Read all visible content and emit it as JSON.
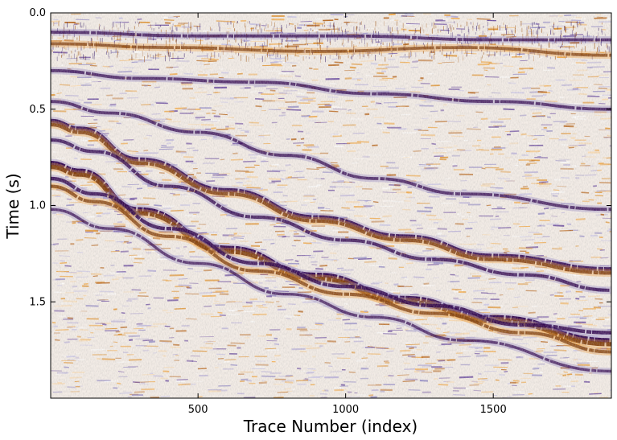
{
  "chart_data": {
    "type": "heatmap",
    "title": "",
    "xlabel": "Trace Number (index)",
    "ylabel": "Time (s)",
    "xlim": [
      1,
      1900
    ],
    "ylim": [
      2.0,
      0.0
    ],
    "x_ticks": [
      {
        "value": 500,
        "label": "500"
      },
      {
        "value": 1000,
        "label": "1000"
      },
      {
        "value": 1500,
        "label": "1500"
      }
    ],
    "y_ticks": [
      {
        "value": 0.0,
        "label": "0.0"
      },
      {
        "value": 0.5,
        "label": "0.5"
      },
      {
        "value": 1.0,
        "label": "1.0"
      },
      {
        "value": 1.5,
        "label": "1.5"
      }
    ],
    "grid": false,
    "colormap": "PuOr",
    "colors": {
      "positive": "#2d004b",
      "negative": "#7f3b08",
      "zero": "#f7f7f7"
    },
    "reflectors": [
      {
        "amplitude": 1.0,
        "points": [
          [
            1,
            0.78
          ],
          [
            100,
            0.82
          ],
          [
            300,
            1.02
          ],
          [
            600,
            1.22
          ],
          [
            900,
            1.36
          ],
          [
            1200,
            1.48
          ],
          [
            1500,
            1.58
          ],
          [
            1900,
            1.7
          ]
        ]
      },
      {
        "amplitude": -0.9,
        "points": [
          [
            1,
            0.8
          ],
          [
            100,
            0.84
          ],
          [
            300,
            1.04
          ],
          [
            600,
            1.24
          ],
          [
            900,
            1.38
          ],
          [
            1200,
            1.5
          ],
          [
            1500,
            1.6
          ],
          [
            1900,
            1.72
          ]
        ]
      },
      {
        "amplitude": 0.8,
        "points": [
          [
            1,
            0.56
          ],
          [
            100,
            0.6
          ],
          [
            300,
            0.76
          ],
          [
            600,
            0.92
          ],
          [
            900,
            1.06
          ],
          [
            1200,
            1.16
          ],
          [
            1500,
            1.26
          ],
          [
            1900,
            1.33
          ]
        ]
      },
      {
        "amplitude": -0.7,
        "points": [
          [
            1,
            0.58
          ],
          [
            100,
            0.62
          ],
          [
            300,
            0.78
          ],
          [
            600,
            0.94
          ],
          [
            900,
            1.08
          ],
          [
            1200,
            1.18
          ],
          [
            1500,
            1.28
          ],
          [
            1900,
            1.35
          ]
        ]
      },
      {
        "amplitude": 0.6,
        "points": [
          [
            1,
            0.66
          ],
          [
            150,
            0.72
          ],
          [
            400,
            0.9
          ],
          [
            700,
            1.06
          ],
          [
            1000,
            1.18
          ],
          [
            1300,
            1.28
          ],
          [
            1600,
            1.36
          ],
          [
            1900,
            1.44
          ]
        ]
      },
      {
        "amplitude": 0.7,
        "points": [
          [
            1,
            0.86
          ],
          [
            150,
            0.94
          ],
          [
            400,
            1.12
          ],
          [
            700,
            1.3
          ],
          [
            1000,
            1.42
          ],
          [
            1300,
            1.52
          ],
          [
            1600,
            1.62
          ],
          [
            1900,
            1.66
          ]
        ]
      },
      {
        "amplitude": -0.6,
        "points": [
          [
            1,
            0.9
          ],
          [
            150,
            0.98
          ],
          [
            400,
            1.16
          ],
          [
            700,
            1.34
          ],
          [
            1000,
            1.46
          ],
          [
            1300,
            1.56
          ],
          [
            1600,
            1.66
          ],
          [
            1900,
            1.76
          ]
        ]
      },
      {
        "amplitude": 0.5,
        "points": [
          [
            1,
            0.46
          ],
          [
            200,
            0.52
          ],
          [
            500,
            0.62
          ],
          [
            800,
            0.74
          ],
          [
            1100,
            0.86
          ],
          [
            1400,
            0.94
          ],
          [
            1900,
            1.02
          ]
        ]
      },
      {
        "amplitude": 0.5,
        "points": [
          [
            1,
            0.3
          ],
          [
            300,
            0.34
          ],
          [
            700,
            0.36
          ],
          [
            1100,
            0.42
          ],
          [
            1500,
            0.46
          ],
          [
            1900,
            0.5
          ]
        ]
      },
      {
        "amplitude": -0.5,
        "points": [
          [
            1,
            0.16
          ],
          [
            400,
            0.18
          ],
          [
            900,
            0.2
          ],
          [
            1400,
            0.18
          ],
          [
            1900,
            0.22
          ]
        ]
      },
      {
        "amplitude": 0.5,
        "points": [
          [
            1,
            0.1
          ],
          [
            500,
            0.12
          ],
          [
            1000,
            0.12
          ],
          [
            1500,
            0.14
          ],
          [
            1900,
            0.14
          ]
        ]
      },
      {
        "amplitude": 0.4,
        "points": [
          [
            1,
            1.02
          ],
          [
            200,
            1.12
          ],
          [
            500,
            1.3
          ],
          [
            800,
            1.46
          ],
          [
            1100,
            1.58
          ],
          [
            1400,
            1.7
          ],
          [
            1900,
            1.86
          ]
        ]
      }
    ]
  }
}
